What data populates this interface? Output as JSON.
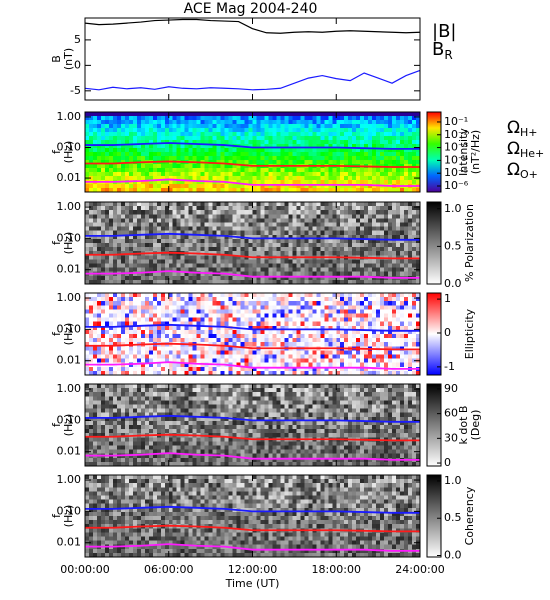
{
  "chart_data": [
    {
      "type": "line",
      "title": "ACE Mag 2004-240",
      "ylabel": [
        "B",
        "(nT)"
      ],
      "xlim": [
        0,
        24
      ],
      "xticks": [
        0,
        6,
        12,
        18,
        24
      ],
      "ylim": [
        -6.8,
        9.3
      ],
      "yticks": [
        5,
        0,
        -5
      ],
      "x": [
        0,
        1,
        2,
        3,
        4,
        5,
        6,
        7,
        8,
        9,
        10,
        11,
        12,
        13,
        14,
        15,
        16,
        17,
        18,
        19,
        20,
        21,
        22,
        23,
        24
      ],
      "series": [
        {
          "name": "|B|",
          "color": "#000000",
          "values": [
            8.3,
            8.0,
            8.1,
            8.3,
            8.5,
            8.8,
            8.9,
            9.0,
            9.0,
            8.8,
            8.7,
            8.6,
            7.2,
            6.4,
            6.3,
            6.5,
            6.6,
            6.5,
            6.7,
            6.8,
            6.7,
            6.6,
            6.5,
            6.4,
            6.5
          ]
        },
        {
          "name": "BR",
          "color": "#1a1aff",
          "values": [
            -4.5,
            -4.8,
            -4.3,
            -4.6,
            -4.4,
            -4.7,
            -4.2,
            -4.5,
            -4.6,
            -4.4,
            -4.5,
            -4.6,
            -4.8,
            -4.7,
            -4.5,
            -3.5,
            -2.5,
            -2.0,
            -2.6,
            -3.0,
            -1.5,
            -2.5,
            -3.5,
            -2.0,
            -1.0
          ]
        }
      ]
    },
    {
      "type": "spectrogram",
      "ylabel": [
        "f",
        "(Hz)"
      ],
      "log": true,
      "xlim": [
        0,
        24
      ],
      "xticks": [
        0,
        6,
        12,
        18,
        24
      ],
      "ylim": [
        0.0035,
        1.45
      ],
      "yticks": [
        {
          "value": 1,
          "label": "1.00"
        },
        {
          "value": 0.1,
          "label": "0.10"
        },
        {
          "value": 0.01,
          "label": "0.01"
        }
      ],
      "colorbar": {
        "label": [
          "Intensity",
          "(nT²/Hz)"
        ],
        "colormap": "rainbow",
        "log": true,
        "lim": [
          3.4e-07,
          0.6
        ],
        "ticks": [
          {
            "value": 0.1,
            "label": "10⁻¹"
          },
          {
            "value": 0.01,
            "label": "10⁻²"
          },
          {
            "value": 0.001,
            "label": "10⁻³"
          },
          {
            "value": 0.0001,
            "label": "10⁻⁴"
          },
          {
            "value": 1e-05,
            "label": "10⁻⁵"
          },
          {
            "value": 1e-06,
            "label": "10⁻⁶"
          }
        ]
      },
      "x": [
        0,
        2,
        4,
        6,
        8,
        10,
        12,
        14,
        16,
        18,
        20,
        22,
        24
      ],
      "series": [
        {
          "name": "ΩH+",
          "color": "#1a1aff",
          "values": [
            0.12,
            0.12,
            0.13,
            0.14,
            0.13,
            0.12,
            0.1,
            0.1,
            0.1,
            0.1,
            0.095,
            0.09,
            0.09
          ]
        },
        {
          "name": "ΩHe+",
          "color": "#ff1a1a",
          "values": [
            0.03,
            0.03,
            0.033,
            0.035,
            0.033,
            0.03,
            0.025,
            0.025,
            0.025,
            0.025,
            0.024,
            0.023,
            0.023
          ]
        },
        {
          "name": "ΩO+",
          "color": "#ff1aff",
          "values": [
            0.0075,
            0.0075,
            0.008,
            0.009,
            0.008,
            0.0075,
            0.006,
            0.006,
            0.006,
            0.006,
            0.006,
            0.0055,
            0.0055
          ]
        }
      ]
    },
    {
      "type": "spectrogram",
      "ylabel": [
        "f",
        "(Hz)"
      ],
      "log": true,
      "xlim": [
        0,
        24
      ],
      "xticks": [
        0,
        6,
        12,
        18,
        24
      ],
      "ylim": [
        0.0035,
        1.45
      ],
      "yticks": [
        {
          "value": 1,
          "label": "1.00"
        },
        {
          "value": 0.1,
          "label": "0.10"
        },
        {
          "value": 0.01,
          "label": "0.01"
        }
      ],
      "colorbar": {
        "label": [
          "% Polarization"
        ],
        "colormap": "gray",
        "log": false,
        "lim": [
          0,
          1.09
        ],
        "ticks": [
          {
            "value": 1,
            "label": "1.0"
          },
          0.5,
          {
            "value": 0,
            "label": "0.0"
          }
        ]
      },
      "x": [
        0,
        2,
        4,
        6,
        8,
        10,
        12,
        14,
        16,
        18,
        20,
        22,
        24
      ],
      "series": [
        {
          "color": "#1a1aff",
          "values": [
            0.12,
            0.12,
            0.13,
            0.14,
            0.13,
            0.12,
            0.1,
            0.1,
            0.1,
            0.1,
            0.095,
            0.09,
            0.09
          ]
        },
        {
          "color": "#ff1a1a",
          "values": [
            0.03,
            0.03,
            0.033,
            0.035,
            0.033,
            0.03,
            0.025,
            0.025,
            0.025,
            0.025,
            0.024,
            0.023,
            0.023
          ]
        },
        {
          "color": "#ff1aff",
          "values": [
            0.0075,
            0.0075,
            0.008,
            0.009,
            0.008,
            0.0075,
            0.006,
            0.006,
            0.006,
            0.006,
            0.006,
            0.0055,
            0.0055
          ]
        }
      ]
    },
    {
      "type": "spectrogram",
      "ylabel": [
        "f",
        "(Hz)"
      ],
      "log": true,
      "xlim": [
        0,
        24
      ],
      "xticks": [
        0,
        6,
        12,
        18,
        24
      ],
      "ylim": [
        0.0035,
        1.45
      ],
      "yticks": [
        {
          "value": 1,
          "label": "1.00"
        },
        {
          "value": 0.1,
          "label": "0.10"
        },
        {
          "value": 0.01,
          "label": "0.01"
        }
      ],
      "colorbar": {
        "label": [
          "Ellipticity"
        ],
        "colormap": "bwr",
        "log": false,
        "lim": [
          -1.24,
          1.18
        ],
        "ticks": [
          1,
          0,
          -1
        ]
      },
      "x": [
        0,
        2,
        4,
        6,
        8,
        10,
        12,
        14,
        16,
        18,
        20,
        22,
        24
      ],
      "series": [
        {
          "color": "#1a1aff",
          "values": [
            0.12,
            0.12,
            0.13,
            0.14,
            0.13,
            0.12,
            0.1,
            0.1,
            0.1,
            0.1,
            0.095,
            0.09,
            0.09
          ]
        },
        {
          "color": "#ff1a1a",
          "values": [
            0.03,
            0.03,
            0.033,
            0.035,
            0.033,
            0.03,
            0.025,
            0.025,
            0.025,
            0.025,
            0.024,
            0.023,
            0.023
          ]
        },
        {
          "color": "#ff1aff",
          "values": [
            0.0075,
            0.0075,
            0.008,
            0.009,
            0.008,
            0.0075,
            0.006,
            0.006,
            0.006,
            0.006,
            0.006,
            0.0055,
            0.0055
          ]
        }
      ]
    },
    {
      "type": "spectrogram",
      "ylabel": [
        "f",
        "(Hz)"
      ],
      "log": true,
      "xlim": [
        0,
        24
      ],
      "xticks": [
        0,
        6,
        12,
        18,
        24
      ],
      "ylim": [
        0.0035,
        1.45
      ],
      "yticks": [
        {
          "value": 1,
          "label": "1.00"
        },
        {
          "value": 0.1,
          "label": "0.10"
        },
        {
          "value": 0.01,
          "label": "0.01"
        }
      ],
      "colorbar": {
        "label": [
          "k dot B",
          "(Deg)"
        ],
        "colormap": "gray",
        "log": false,
        "lim": [
          -3.6,
          96
        ],
        "ticks": [
          90,
          60,
          30,
          0
        ]
      },
      "x": [
        0,
        2,
        4,
        6,
        8,
        10,
        12,
        14,
        16,
        18,
        20,
        22,
        24
      ],
      "series": [
        {
          "color": "#1a1aff",
          "values": [
            0.12,
            0.12,
            0.13,
            0.14,
            0.13,
            0.12,
            0.1,
            0.1,
            0.1,
            0.1,
            0.095,
            0.09,
            0.09
          ]
        },
        {
          "color": "#ff1a1a",
          "values": [
            0.03,
            0.03,
            0.033,
            0.035,
            0.033,
            0.03,
            0.025,
            0.025,
            0.025,
            0.025,
            0.024,
            0.023,
            0.023
          ]
        },
        {
          "color": "#ff1aff",
          "values": [
            0.0075,
            0.0075,
            0.008,
            0.009,
            0.008,
            0.0075,
            0.006,
            0.006,
            0.006,
            0.006,
            0.006,
            0.0055,
            0.0055
          ]
        }
      ]
    },
    {
      "type": "spectrogram",
      "ylabel": [
        "f",
        "(Hz)"
      ],
      "log": true,
      "xlabel": "Time (UT)",
      "xlim": [
        0,
        24
      ],
      "xticks": [
        {
          "value": 0,
          "label": "00:00:00"
        },
        {
          "value": 6,
          "label": "06:00:00"
        },
        {
          "value": 12,
          "label": "12:00:00"
        },
        {
          "value": 18,
          "label": "18:00:00"
        },
        {
          "value": 24,
          "label": "24:00:00"
        }
      ],
      "ylim": [
        0.0035,
        1.45
      ],
      "yticks": [
        {
          "value": 1,
          "label": "1.00"
        },
        {
          "value": 0.1,
          "label": "0.10"
        },
        {
          "value": 0.01,
          "label": "0.01"
        }
      ],
      "colorbar": {
        "label": [
          "Coherency"
        ],
        "colormap": "gray",
        "log": false,
        "lim": [
          -0.02,
          1.08
        ],
        "ticks": [
          {
            "value": 1,
            "label": "1.0"
          },
          0.5,
          {
            "value": 0,
            "label": "0.0"
          }
        ]
      },
      "x": [
        0,
        2,
        4,
        6,
        8,
        10,
        12,
        14,
        16,
        18,
        20,
        22,
        24
      ],
      "series": [
        {
          "color": "#1a1aff",
          "values": [
            0.12,
            0.12,
            0.13,
            0.14,
            0.13,
            0.12,
            0.1,
            0.1,
            0.1,
            0.1,
            0.095,
            0.09,
            0.09
          ]
        },
        {
          "color": "#ff1a1a",
          "values": [
            0.03,
            0.03,
            0.033,
            0.035,
            0.033,
            0.03,
            0.025,
            0.025,
            0.025,
            0.025,
            0.024,
            0.023,
            0.023
          ]
        },
        {
          "color": "#ff1aff",
          "values": [
            0.0075,
            0.0075,
            0.008,
            0.009,
            0.008,
            0.0075,
            0.006,
            0.006,
            0.006,
            0.006,
            0.006,
            0.0055,
            0.0055
          ]
        }
      ]
    }
  ]
}
